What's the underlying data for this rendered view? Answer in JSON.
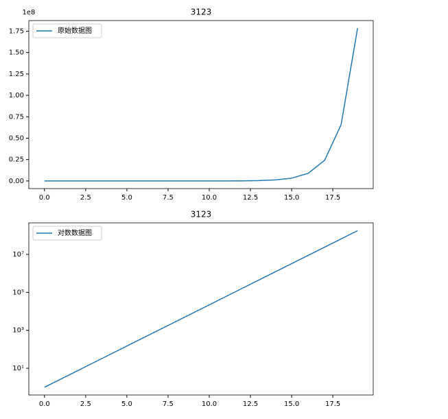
{
  "chart_data": [
    {
      "type": "line",
      "title": "3123",
      "y_offset_label": "1e8",
      "x": [
        0,
        1,
        2,
        3,
        4,
        5,
        6,
        7,
        8,
        9,
        10,
        11,
        12,
        13,
        14,
        15,
        16,
        17,
        18,
        19
      ],
      "series": [
        {
          "name": "原始数据图",
          "color": "#1f77b4",
          "values": [
            1,
            2.718,
            7.389,
            20.09,
            54.6,
            148.4,
            403.4,
            1096.6,
            2981,
            8103,
            22026,
            59874,
            162755,
            442413,
            1202604,
            3269017,
            8886111,
            24154953,
            65659969,
            178482301
          ]
        }
      ],
      "xlim": [
        -0.95,
        19.95
      ],
      "xticks": [
        {
          "value": 0,
          "label": "0.0"
        },
        2.5,
        {
          "value": 5,
          "label": "5.0"
        },
        7.5,
        {
          "value": 10,
          "label": "10.0"
        },
        12.5,
        {
          "value": 15,
          "label": "15.0"
        },
        17.5
      ],
      "ylim": [
        -8900000,
        187400000
      ],
      "yticks": [
        {
          "value": 0,
          "label": "0.00"
        },
        {
          "value": 25000000,
          "label": "0.25"
        },
        {
          "value": 50000000,
          "label": "0.50"
        },
        {
          "value": 75000000,
          "label": "0.75"
        },
        {
          "value": 100000000,
          "label": "1.00"
        },
        {
          "value": 125000000,
          "label": "1.25"
        },
        {
          "value": 150000000,
          "label": "1.50"
        },
        {
          "value": 175000000,
          "label": "1.75"
        }
      ],
      "yscale": "linear",
      "legend": "upper-left"
    },
    {
      "type": "line",
      "title": "3123",
      "x": [
        0,
        1,
        2,
        3,
        4,
        5,
        6,
        7,
        8,
        9,
        10,
        11,
        12,
        13,
        14,
        15,
        16,
        17,
        18,
        19
      ],
      "series": [
        {
          "name": "对数数据图",
          "color": "#1f77b4",
          "values": [
            1,
            2.718,
            7.389,
            20.09,
            54.6,
            148.4,
            403.4,
            1096.6,
            2981,
            8103,
            22026,
            59874,
            162755,
            442413,
            1202604,
            3269017,
            8886111,
            24154953,
            65659969,
            178482301
          ]
        }
      ],
      "xlim": [
        -0.95,
        19.95
      ],
      "xticks": [
        {
          "value": 0,
          "label": "0.0"
        },
        2.5,
        {
          "value": 5,
          "label": "5.0"
        },
        7.5,
        {
          "value": 10,
          "label": "10.0"
        },
        12.5,
        {
          "value": 15,
          "label": "15.0"
        },
        17.5
      ],
      "ylim": [
        0.39,
        460000000
      ],
      "yticks": [
        {
          "value": 10,
          "label": "10¹"
        },
        {
          "value": 1000,
          "label": "10³"
        },
        {
          "value": 100000,
          "label": "10⁵"
        },
        {
          "value": 10000000,
          "label": "10⁷"
        }
      ],
      "yscale": "log",
      "legend": "upper-left"
    }
  ]
}
